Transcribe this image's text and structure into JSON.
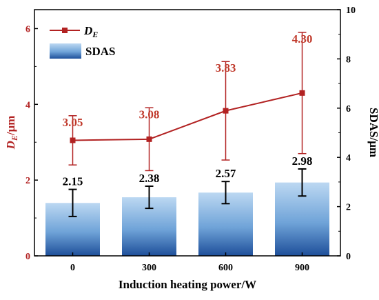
{
  "chart_data": {
    "type": "bar",
    "categories": [
      "0",
      "300",
      "600",
      "900"
    ],
    "xlabel": "Induction heating power/W",
    "ylabel_left": {
      "main": "D",
      "sub": "E",
      "suffix": "/μm"
    },
    "ylabel_right": "SDAS/μm",
    "ylim_left": [
      0,
      6.5
    ],
    "ylim_right": [
      0,
      10
    ],
    "yticks_left": [
      "0",
      "2",
      "4",
      "6"
    ],
    "yticks_right": [
      "0",
      "2",
      "4",
      "6",
      "8",
      "10"
    ],
    "series": [
      {
        "name": "SDAS",
        "type": "bar",
        "axis": "right",
        "values": [
          2.15,
          2.38,
          2.57,
          2.98
        ],
        "error": [
          0.55,
          0.45,
          0.45,
          0.55
        ],
        "labels": [
          "2.15",
          "2.38",
          "2.57",
          "2.98"
        ]
      },
      {
        "name": "DE",
        "legend_main": "D",
        "legend_sub": "E",
        "type": "line",
        "axis": "left",
        "values": [
          3.05,
          3.08,
          3.83,
          4.3
        ],
        "error": [
          0.65,
          0.83,
          1.3,
          1.6
        ],
        "labels": [
          "3.05",
          "3.08",
          "3.83",
          "4.30"
        ]
      }
    ],
    "colors": {
      "line": "#b22222",
      "line_label": "#c0392b",
      "bar_top": "#bcd8f2",
      "bar_bottom": "#1e4f9a",
      "error": "#000000"
    },
    "legend_position": "top-left",
    "grid": false
  }
}
